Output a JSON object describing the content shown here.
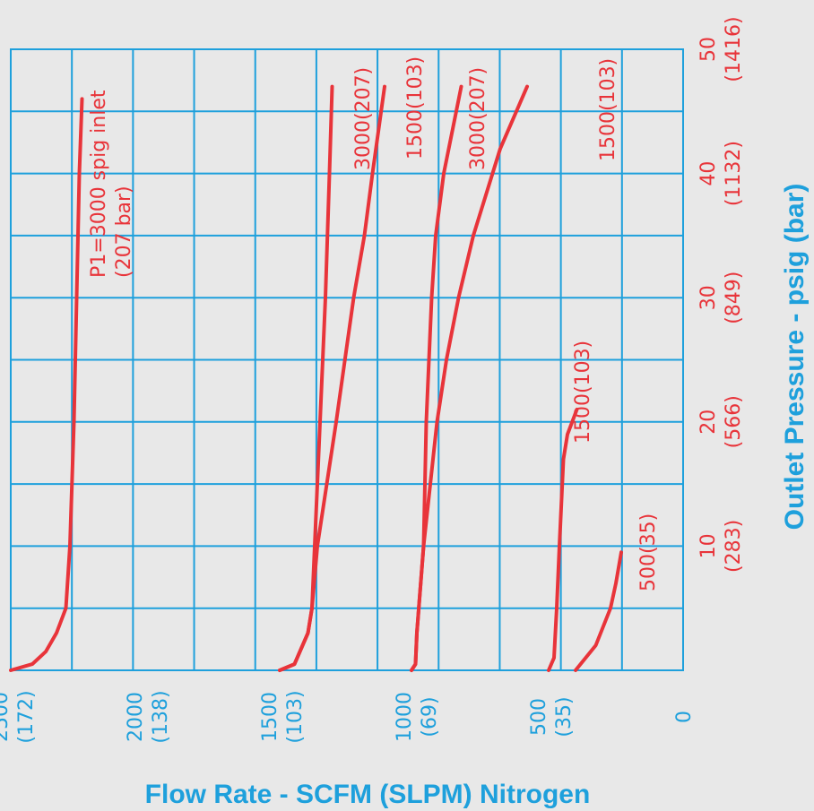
{
  "chart_data": {
    "type": "line",
    "orientation": "rotated-90-ccw",
    "colors": {
      "grid": "#1ea0dc",
      "curves": "#e8343a",
      "background": "#e8e8e8"
    },
    "x_axis": {
      "title": "Outlet Pressure - psig (bar)",
      "range": [
        0,
        50
      ],
      "ticks": [
        {
          "value": 10,
          "line1": "10",
          "line2": "(283)"
        },
        {
          "value": 20,
          "line1": "20",
          "line2": "(566)"
        },
        {
          "value": 30,
          "line1": "30",
          "line2": "(849)"
        },
        {
          "value": 40,
          "line1": "40",
          "line2": "(1132)"
        },
        {
          "value": 50,
          "line1": "50",
          "line2": "(1416)"
        }
      ]
    },
    "y_axis": {
      "title": "Flow Rate - SCFM (SLPM) Nitrogen",
      "range": [
        0,
        2500
      ],
      "ticks": [
        {
          "value": 0,
          "line1": "0",
          "line2": ""
        },
        {
          "value": 500,
          "line1": "500",
          "line2": "(35)"
        },
        {
          "value": 1000,
          "line1": "1000",
          "line2": "(69)"
        },
        {
          "value": 1500,
          "line1": "1500",
          "line2": "(103)"
        },
        {
          "value": 2000,
          "line1": "2000",
          "line2": "(138)"
        },
        {
          "value": 2500,
          "line1": "2500",
          "line2": "(172)"
        }
      ]
    },
    "grid": true,
    "series": [
      {
        "label_lines": [
          "P1=3000 spig inlet",
          "(207 bar)"
        ],
        "points": [
          [
            0,
            2500
          ],
          [
            0.5,
            2420
          ],
          [
            1.5,
            2370
          ],
          [
            3,
            2330
          ],
          [
            5,
            2295
          ],
          [
            10,
            2280
          ],
          [
            20,
            2265
          ],
          [
            30,
            2255
          ],
          [
            40,
            2245
          ],
          [
            46,
            2235
          ]
        ]
      },
      {
        "label_lines": [
          "3000(207)"
        ],
        "points": [
          [
            0,
            1500
          ],
          [
            0.5,
            1445
          ],
          [
            1.5,
            1425
          ],
          [
            3,
            1395
          ],
          [
            5,
            1380
          ],
          [
            10,
            1370
          ],
          [
            20,
            1350
          ],
          [
            30,
            1330
          ],
          [
            40,
            1315
          ],
          [
            47,
            1305
          ]
        ]
      },
      {
        "label_lines": [
          "1500(103)"
        ],
        "points": [
          [
            0,
            1500
          ],
          [
            0.5,
            1445
          ],
          [
            1.5,
            1425
          ],
          [
            3,
            1395
          ],
          [
            5,
            1380
          ],
          [
            10,
            1360
          ],
          [
            20,
            1290
          ],
          [
            30,
            1225
          ],
          [
            35,
            1185
          ],
          [
            40,
            1155
          ],
          [
            47,
            1110
          ]
        ]
      },
      {
        "label_lines": [
          "3000(207)"
        ],
        "points": [
          [
            0,
            1010
          ],
          [
            0.5,
            995
          ],
          [
            3,
            990
          ],
          [
            10,
            965
          ],
          [
            20,
            955
          ],
          [
            30,
            935
          ],
          [
            35,
            920
          ],
          [
            40,
            890
          ],
          [
            47,
            825
          ]
        ]
      },
      {
        "label_lines": [
          "1500(103)"
        ],
        "points": [
          [
            0,
            1010
          ],
          [
            0.5,
            995
          ],
          [
            3,
            990
          ],
          [
            10,
            965
          ],
          [
            20,
            915
          ],
          [
            25,
            880
          ],
          [
            30,
            835
          ],
          [
            35,
            780
          ],
          [
            42,
            680
          ],
          [
            47,
            580
          ]
        ]
      },
      {
        "label_lines": [
          "1500(103)"
        ],
        "points": [
          [
            0,
            500
          ],
          [
            1,
            480
          ],
          [
            5,
            470
          ],
          [
            10,
            460
          ],
          [
            17,
            445
          ],
          [
            19,
            430
          ],
          [
            21,
            395
          ]
        ]
      },
      {
        "label_lines": [
          "500(35)"
        ],
        "points": [
          [
            0,
            400
          ],
          [
            2,
            325
          ],
          [
            5,
            270
          ],
          [
            7,
            250
          ],
          [
            9.5,
            230
          ]
        ]
      }
    ]
  }
}
